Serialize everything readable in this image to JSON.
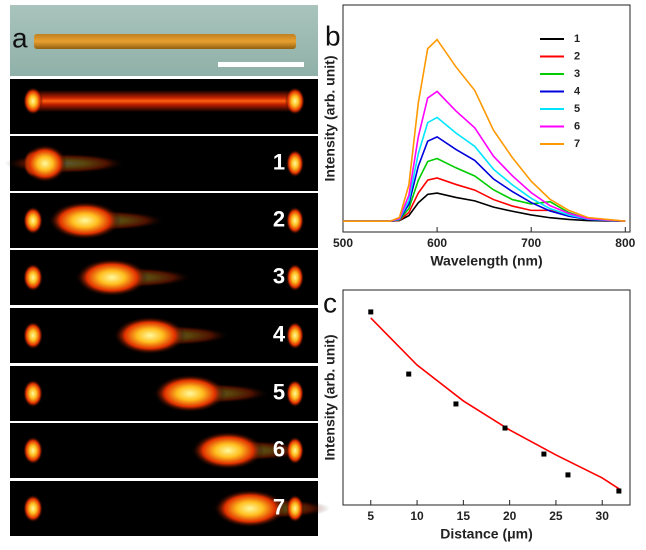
{
  "panel_a": {
    "label": "a",
    "frames": [
      "1",
      "2",
      "3",
      "4",
      "5",
      "6",
      "7"
    ]
  },
  "chart_data": [
    {
      "type": "line",
      "label": "b",
      "x_label": "Wavelength (nm)",
      "y_label": "Intensity (arb. unit)",
      "x": [
        500,
        550,
        560,
        570,
        580,
        590,
        600,
        620,
        640,
        660,
        680,
        700,
        720,
        740,
        760,
        800
      ],
      "xlim": [
        500,
        805
      ],
      "xticks": [
        500,
        600,
        700,
        800
      ],
      "ylim": [
        -5,
        100
      ],
      "legend": "upper right",
      "series": [
        {
          "name": "1",
          "color": "#000000",
          "values": [
            0,
            0,
            0.3,
            2.6,
            8.5,
            12.4,
            13,
            11,
            9.4,
            6.5,
            4.6,
            2.9,
            1.6,
            0.8,
            0.3,
            0
          ]
        },
        {
          "name": "2",
          "color": "#ff0000",
          "values": [
            0,
            0,
            0.4,
            4,
            13,
            19,
            20,
            17,
            14.4,
            10,
            7,
            5,
            5,
            3,
            1,
            0
          ]
        },
        {
          "name": "3",
          "color": "#00cc00",
          "values": [
            0,
            0,
            0.6,
            5.8,
            18.9,
            27.6,
            29,
            24.7,
            20.9,
            14.5,
            10,
            8,
            9,
            4,
            1,
            0
          ]
        },
        {
          "name": "4",
          "color": "#0000dd",
          "values": [
            0,
            0,
            0.8,
            7.8,
            25.4,
            37,
            39,
            33.2,
            28.1,
            19.5,
            13.7,
            8.6,
            4.7,
            2.3,
            0.8,
            0
          ]
        },
        {
          "name": "5",
          "color": "#00e5ff",
          "values": [
            0,
            0,
            1,
            9.6,
            31.2,
            45.6,
            48,
            40.8,
            34.6,
            24,
            16.8,
            10.6,
            5.8,
            2.9,
            1,
            0
          ]
        },
        {
          "name": "6",
          "color": "#ff00ff",
          "values": [
            0,
            0,
            1.2,
            12,
            39,
            57,
            60,
            51,
            43.2,
            30,
            21,
            13.2,
            7.2,
            3.6,
            1.2,
            0
          ]
        },
        {
          "name": "7",
          "color": "#ff9900",
          "values": [
            0,
            0,
            1.7,
            16.8,
            54.6,
            79.8,
            84,
            71.4,
            60.5,
            42,
            29.4,
            18.5,
            10.1,
            5,
            1.7,
            0
          ]
        }
      ]
    },
    {
      "type": "scatter",
      "label": "c",
      "x_label": "Distance (μm)",
      "y_label": "Intensity (arb. unit)",
      "x": [
        5,
        9.1,
        14.2,
        19.5,
        23.7,
        26.3,
        31.8
      ],
      "values": [
        89.8,
        60.9,
        47,
        35.8,
        23.7,
        14,
        6.5
      ],
      "color": "#000000",
      "xlim": [
        2,
        33
      ],
      "xticks": [
        5,
        10,
        15,
        20,
        25,
        30
      ],
      "ylim": [
        0,
        100
      ],
      "fit": {
        "x": [
          5,
          10,
          15,
          20,
          25,
          30,
          32
        ],
        "values": [
          87,
          65.1,
          48.4,
          34.9,
          23.3,
          12.6,
          7
        ],
        "color": "#ff0000"
      }
    }
  ]
}
